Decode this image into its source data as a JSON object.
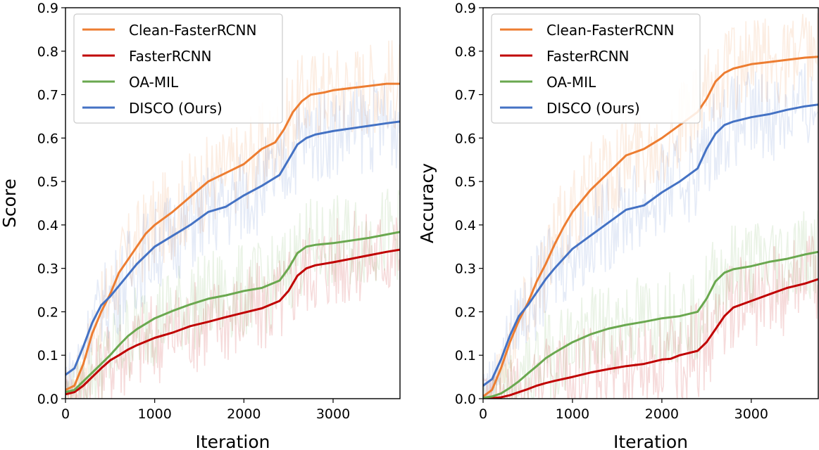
{
  "chart_data": [
    {
      "type": "line",
      "title": "",
      "xlabel": "Iteration",
      "ylabel": "Score",
      "xlim": [
        0,
        3750
      ],
      "ylim": [
        0,
        0.9
      ],
      "xticks": [
        0,
        1000,
        2000,
        3000
      ],
      "yticks": [
        0.0,
        0.1,
        0.2,
        0.3,
        0.4,
        0.5,
        0.6,
        0.7,
        0.8,
        0.9
      ],
      "xtick_labels": [
        "0",
        "1000",
        "2000",
        "3000"
      ],
      "ytick_labels": [
        "0.0",
        "0.1",
        "0.2",
        "0.3",
        "0.4",
        "0.5",
        "0.6",
        "0.7",
        "0.8",
        "0.9"
      ],
      "legend_position": "top-left",
      "series": [
        {
          "name": "Clean-FasterRCNN",
          "color": "#ed7d31",
          "x": [
            0,
            100,
            200,
            300,
            400,
            500,
            600,
            700,
            800,
            900,
            1000,
            1200,
            1400,
            1600,
            1800,
            2000,
            2200,
            2350,
            2450,
            2550,
            2650,
            2750,
            2900,
            3000,
            3200,
            3400,
            3600,
            3750
          ],
          "values": [
            0.02,
            0.03,
            0.08,
            0.15,
            0.2,
            0.24,
            0.29,
            0.32,
            0.35,
            0.38,
            0.4,
            0.43,
            0.465,
            0.5,
            0.52,
            0.54,
            0.575,
            0.59,
            0.62,
            0.66,
            0.685,
            0.7,
            0.705,
            0.71,
            0.715,
            0.72,
            0.725,
            0.725
          ]
        },
        {
          "name": "FasterRCNN",
          "color": "#c00000",
          "x": [
            0,
            100,
            200,
            300,
            400,
            500,
            600,
            700,
            800,
            1000,
            1200,
            1400,
            1600,
            1800,
            2000,
            2200,
            2400,
            2500,
            2600,
            2700,
            2800,
            3000,
            3200,
            3400,
            3600,
            3750
          ],
          "values": [
            0.01,
            0.015,
            0.03,
            0.05,
            0.07,
            0.088,
            0.1,
            0.113,
            0.123,
            0.14,
            0.152,
            0.167,
            0.177,
            0.188,
            0.198,
            0.208,
            0.225,
            0.248,
            0.283,
            0.3,
            0.307,
            0.314,
            0.322,
            0.33,
            0.338,
            0.343
          ]
        },
        {
          "name": "OA-MIL",
          "color": "#6aa84f",
          "x": [
            0,
            100,
            200,
            300,
            400,
            500,
            600,
            700,
            800,
            1000,
            1200,
            1400,
            1600,
            1800,
            2000,
            2200,
            2400,
            2500,
            2600,
            2700,
            2800,
            3000,
            3200,
            3400,
            3600,
            3750
          ],
          "values": [
            0.015,
            0.02,
            0.04,
            0.06,
            0.08,
            0.1,
            0.123,
            0.144,
            0.16,
            0.185,
            0.202,
            0.217,
            0.23,
            0.238,
            0.248,
            0.255,
            0.272,
            0.3,
            0.335,
            0.35,
            0.354,
            0.358,
            0.364,
            0.37,
            0.378,
            0.384
          ]
        },
        {
          "name": "DISCO (Ours)",
          "color": "#4472c4",
          "x": [
            0,
            100,
            200,
            300,
            400,
            500,
            600,
            700,
            800,
            1000,
            1200,
            1400,
            1600,
            1800,
            2000,
            2200,
            2400,
            2500,
            2600,
            2700,
            2800,
            3000,
            3200,
            3400,
            3600,
            3750
          ],
          "values": [
            0.055,
            0.07,
            0.12,
            0.175,
            0.215,
            0.235,
            0.26,
            0.285,
            0.31,
            0.35,
            0.375,
            0.4,
            0.43,
            0.442,
            0.468,
            0.49,
            0.515,
            0.55,
            0.585,
            0.6,
            0.608,
            0.616,
            0.622,
            0.628,
            0.634,
            0.638
          ]
        }
      ]
    },
    {
      "type": "line",
      "title": "",
      "xlabel": "Iteration",
      "ylabel": "Accuracy",
      "xlim": [
        0,
        3750
      ],
      "ylim": [
        0,
        0.9
      ],
      "xticks": [
        0,
        1000,
        2000,
        3000
      ],
      "yticks": [
        0.0,
        0.1,
        0.2,
        0.3,
        0.4,
        0.5,
        0.6,
        0.7,
        0.8,
        0.9
      ],
      "xtick_labels": [
        "0",
        "1000",
        "2000",
        "3000"
      ],
      "ytick_labels": [
        "0.0",
        "0.1",
        "0.2",
        "0.3",
        "0.4",
        "0.5",
        "0.6",
        "0.7",
        "0.8",
        "0.9"
      ],
      "legend_position": "top-left",
      "series": [
        {
          "name": "Clean-FasterRCNN",
          "color": "#ed7d31",
          "x": [
            0,
            100,
            200,
            300,
            400,
            500,
            600,
            700,
            800,
            900,
            1000,
            1200,
            1400,
            1600,
            1800,
            2000,
            2200,
            2400,
            2500,
            2600,
            2700,
            2800,
            3000,
            3200,
            3400,
            3600,
            3750
          ],
          "values": [
            0.005,
            0.02,
            0.07,
            0.13,
            0.18,
            0.22,
            0.27,
            0.31,
            0.355,
            0.395,
            0.43,
            0.48,
            0.52,
            0.56,
            0.575,
            0.6,
            0.63,
            0.66,
            0.69,
            0.73,
            0.75,
            0.76,
            0.77,
            0.775,
            0.78,
            0.785,
            0.787
          ]
        },
        {
          "name": "FasterRCNN",
          "color": "#c00000",
          "x": [
            0,
            100,
            200,
            300,
            400,
            500,
            600,
            700,
            800,
            1000,
            1200,
            1400,
            1600,
            1800,
            2000,
            2100,
            2200,
            2400,
            2500,
            2600,
            2700,
            2800,
            3000,
            3200,
            3400,
            3600,
            3750
          ],
          "values": [
            0,
            0.001,
            0.003,
            0.008,
            0.015,
            0.022,
            0.03,
            0.036,
            0.041,
            0.05,
            0.06,
            0.068,
            0.075,
            0.08,
            0.09,
            0.092,
            0.1,
            0.11,
            0.13,
            0.16,
            0.19,
            0.21,
            0.225,
            0.24,
            0.255,
            0.265,
            0.275
          ]
        },
        {
          "name": "OA-MIL",
          "color": "#6aa84f",
          "x": [
            0,
            100,
            200,
            300,
            400,
            500,
            600,
            700,
            800,
            1000,
            1200,
            1400,
            1600,
            1800,
            2000,
            2200,
            2400,
            2500,
            2600,
            2700,
            2800,
            3000,
            3200,
            3400,
            3600,
            3750
          ],
          "values": [
            0.002,
            0.005,
            0.012,
            0.025,
            0.04,
            0.058,
            0.075,
            0.093,
            0.106,
            0.13,
            0.148,
            0.161,
            0.17,
            0.177,
            0.185,
            0.19,
            0.2,
            0.23,
            0.27,
            0.29,
            0.298,
            0.305,
            0.315,
            0.322,
            0.332,
            0.338
          ]
        },
        {
          "name": "DISCO (Ours)",
          "color": "#4472c4",
          "x": [
            0,
            100,
            200,
            300,
            400,
            500,
            600,
            700,
            800,
            1000,
            1200,
            1400,
            1600,
            1800,
            2000,
            2200,
            2400,
            2500,
            2600,
            2700,
            2800,
            3000,
            3200,
            3400,
            3600,
            3750
          ],
          "values": [
            0.03,
            0.045,
            0.09,
            0.145,
            0.19,
            0.215,
            0.245,
            0.275,
            0.3,
            0.345,
            0.375,
            0.405,
            0.435,
            0.445,
            0.475,
            0.5,
            0.53,
            0.575,
            0.61,
            0.63,
            0.638,
            0.648,
            0.655,
            0.665,
            0.673,
            0.677
          ]
        }
      ]
    }
  ]
}
